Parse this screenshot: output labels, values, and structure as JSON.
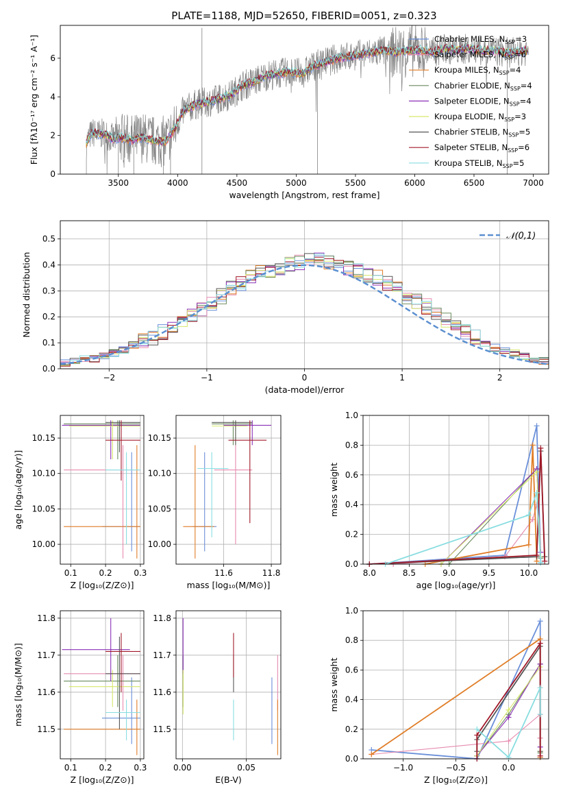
{
  "figure_title": "PLATE=1188, MJD=52650, FIBERID=0051, z=0.323",
  "colors": {
    "Chabrier MILES": "#6a8fd9",
    "Salpeter MILES": "#e68aaf",
    "Kroupa MILES": "#e07d27",
    "Chabrier ELODIE": "#6a8a5e",
    "Salpeter ELODIE": "#8a2fb6",
    "Kroupa ELODIE": "#d6e86a",
    "Chabrier STELIB": "#555555",
    "Salpeter STELIB": "#a01828",
    "Kroupa STELIB": "#88dde0",
    "data": "#808080",
    "gaussian": "#5b8fd0"
  },
  "chart_data": [
    {
      "id": "spectrum",
      "type": "line",
      "xlabel": "wavelength [Angstrom, rest frame]",
      "ylabel": "Flux [fλ10⁻¹⁷ erg cm⁻² s⁻¹ A⁻¹]",
      "xlim": [
        3010,
        7130
      ],
      "ylim": [
        0,
        7.7
      ],
      "xticks": [
        3500,
        4000,
        4500,
        5000,
        5500,
        6000,
        6500,
        7000
      ],
      "yticks": [
        0,
        2,
        4,
        6
      ],
      "continuum_knots": {
        "x": [
          3230,
          3260,
          3290,
          3320,
          3380,
          3460,
          3520,
          3600,
          3700,
          3800,
          3900,
          3980,
          4050,
          4150,
          4300,
          4450,
          4550,
          4650,
          4750,
          4850,
          4950,
          5050,
          5150,
          5250,
          5350,
          5450,
          5550,
          5650,
          5750,
          5850,
          5950,
          6050,
          6150,
          6250,
          6350,
          6450,
          6550,
          6650,
          6750,
          6850,
          6950
        ],
        "y": [
          1.6,
          2.0,
          2.15,
          2.05,
          2.1,
          1.8,
          1.9,
          1.75,
          1.9,
          1.7,
          1.7,
          2.4,
          3.3,
          3.6,
          3.8,
          4.1,
          4.6,
          4.8,
          5.1,
          5.2,
          5.3,
          5.2,
          5.6,
          5.8,
          6.0,
          6.1,
          6.2,
          6.3,
          6.4,
          6.3,
          6.4,
          6.4,
          6.3,
          6.5,
          6.4,
          6.5,
          6.4,
          6.4,
          6.3,
          6.3,
          6.4
        ]
      },
      "legend": [
        "Chabrier MILES, N_SSP=3",
        "Salpeter MILES, N_SSP=6",
        "Kroupa MILES, N_SSP=4",
        "Chabrier ELODIE, N_SSP=4",
        "Salpeter ELODIE, N_SSP=4",
        "Kroupa ELODIE, N_SSP=3",
        "Chabrier STELIB, N_SSP=5",
        "Salpeter STELIB, N_SSP=6",
        "Kroupa STELIB, N_SSP=5"
      ],
      "legend_keys": [
        "Chabrier MILES",
        "Salpeter MILES",
        "Kroupa MILES",
        "Chabrier ELODIE",
        "Salpeter ELODIE",
        "Kroupa ELODIE",
        "Chabrier STELIB",
        "Salpeter STELIB",
        "Kroupa STELIB"
      ]
    },
    {
      "id": "residuals",
      "type": "histogram",
      "xlabel": "(data-model)/error",
      "ylabel": "Normed distribution",
      "xlim": [
        -2.5,
        2.5
      ],
      "ylim": [
        0,
        0.57
      ],
      "xticks": [
        -2,
        -1,
        0,
        1,
        2
      ],
      "yticks": [
        0.0,
        0.1,
        0.2,
        0.3,
        0.4,
        0.5
      ],
      "bin_width": 0.1,
      "bins_start": -2.5,
      "values": [
        0.02,
        0.03,
        0.04,
        0.04,
        0.05,
        0.06,
        0.07,
        0.09,
        0.11,
        0.12,
        0.14,
        0.16,
        0.18,
        0.21,
        0.23,
        0.25,
        0.28,
        0.31,
        0.33,
        0.35,
        0.37,
        0.38,
        0.39,
        0.4,
        0.41,
        0.42,
        0.42,
        0.41,
        0.4,
        0.39,
        0.38,
        0.36,
        0.35,
        0.33,
        0.31,
        0.28,
        0.26,
        0.24,
        0.21,
        0.19,
        0.16,
        0.14,
        0.12,
        0.1,
        0.08,
        0.07,
        0.06,
        0.05,
        0.04,
        0.03
      ],
      "legend": "𝒩(0,1)"
    },
    {
      "id": "age-vs-Z",
      "type": "errorbar",
      "xlabel": "Z [log₁₀(Z/Z⊙)]",
      "ylabel": "age  [log₁₀(age/yr)]",
      "xlim": [
        0.07,
        0.31
      ],
      "ylim": [
        9.972,
        10.182
      ],
      "xticks": [
        0.1,
        0.2,
        0.3
      ],
      "yticks": [
        10.0,
        10.05,
        10.1,
        10.15
      ],
      "points": [
        {
          "key": "Chabrier MILES",
          "x": 0.275,
          "y": 10.025,
          "xerr": [
            0.19,
            0.3
          ],
          "yerr": [
            9.99,
            10.13
          ]
        },
        {
          "key": "Salpeter MILES",
          "x": 0.25,
          "y": 10.105,
          "xerr": [
            0.08,
            0.3
          ],
          "yerr": [
            9.98,
            10.14
          ]
        },
        {
          "key": "Kroupa MILES",
          "x": 0.29,
          "y": 10.025,
          "xerr": [
            0.08,
            0.3
          ],
          "yerr": [
            9.98,
            10.14
          ]
        },
        {
          "key": "Chabrier ELODIE",
          "x": 0.235,
          "y": 10.17,
          "xerr": [
            0.08,
            0.3
          ],
          "yerr": [
            10.12,
            10.175
          ]
        },
        {
          "key": "Salpeter ELODIE",
          "x": 0.215,
          "y": 10.168,
          "xerr": [
            0.075,
            0.3
          ],
          "yerr": [
            10.12,
            10.175
          ]
        },
        {
          "key": "Kroupa ELODIE",
          "x": 0.22,
          "y": 10.167,
          "xerr": [
            0.095,
            0.3
          ],
          "yerr": [
            10.12,
            10.175
          ]
        },
        {
          "key": "Chabrier STELIB",
          "x": 0.24,
          "y": 10.172,
          "xerr": [
            0.2,
            0.3
          ],
          "yerr": [
            10.13,
            10.175
          ]
        },
        {
          "key": "Salpeter STELIB",
          "x": 0.245,
          "y": 10.147,
          "xerr": [
            0.2,
            0.3
          ],
          "yerr": [
            10.09,
            10.175
          ]
        },
        {
          "key": "Kroupa STELIB",
          "x": 0.26,
          "y": 10.105,
          "xerr": [
            0.2,
            0.3
          ],
          "yerr": [
            10.0,
            10.13
          ]
        }
      ]
    },
    {
      "id": "age-vs-mass",
      "type": "errorbar",
      "xlabel": "mass [log₁₀(M/M⊙)]",
      "ylabel": "",
      "xlim": [
        11.4,
        11.84
      ],
      "ylim": [
        9.972,
        10.182
      ],
      "xticks": [
        11.6,
        11.8
      ],
      "yticks": [
        10.0,
        10.05,
        10.1,
        10.15
      ],
      "points": [
        {
          "key": "Chabrier MILES",
          "x": 11.52,
          "y": 10.025,
          "xerr": [
            11.47,
            11.57
          ],
          "yerr": [
            9.99,
            10.13
          ]
        },
        {
          "key": "Salpeter MILES",
          "x": 11.65,
          "y": 10.105,
          "xerr": [
            11.56,
            11.72
          ],
          "yerr": [
            10.0,
            10.14
          ]
        },
        {
          "key": "Kroupa MILES",
          "x": 11.48,
          "y": 10.025,
          "xerr": [
            11.43,
            11.56
          ],
          "yerr": [
            9.98,
            10.14
          ]
        },
        {
          "key": "Chabrier ELODIE",
          "x": 11.64,
          "y": 10.17,
          "xerr": [
            11.55,
            11.72
          ],
          "yerr": [
            10.14,
            10.175
          ]
        },
        {
          "key": "Salpeter ELODIE",
          "x": 11.72,
          "y": 10.168,
          "xerr": [
            11.6,
            11.8
          ],
          "yerr": [
            10.14,
            10.175
          ]
        },
        {
          "key": "Kroupa ELODIE",
          "x": 11.65,
          "y": 10.167,
          "xerr": [
            11.55,
            11.7
          ],
          "yerr": [
            10.14,
            10.175
          ]
        },
        {
          "key": "Chabrier STELIB",
          "x": 11.65,
          "y": 10.172,
          "xerr": [
            11.55,
            11.72
          ],
          "yerr": [
            10.14,
            10.175
          ]
        },
        {
          "key": "Salpeter STELIB",
          "x": 11.71,
          "y": 10.147,
          "xerr": [
            11.62,
            11.78
          ],
          "yerr": [
            10.03,
            10.175
          ]
        },
        {
          "key": "Kroupa STELIB",
          "x": 11.55,
          "y": 10.107,
          "xerr": [
            11.49,
            11.62
          ],
          "yerr": [
            10.01,
            10.13
          ]
        }
      ]
    },
    {
      "id": "weight-vs-age",
      "type": "line",
      "xlabel": "age  [log₁₀(age/yr)]",
      "ylabel": "mass weight",
      "xlim": [
        7.92,
        10.25
      ],
      "ylim": [
        0,
        1.0
      ],
      "xticks": [
        8.0,
        8.5,
        9.0,
        9.5,
        10.0
      ],
      "yticks": [
        0.0,
        0.2,
        0.4,
        0.6,
        0.8,
        1.0
      ],
      "series": [
        {
          "key": "Chabrier MILES",
          "x": [
            8.0,
            9.7,
            10.1,
            10.15
          ],
          "y": [
            0.0,
            0.06,
            0.93,
            0.01
          ]
        },
        {
          "key": "Salpeter MILES",
          "x": [
            8.3,
            9.7,
            10.05,
            10.1,
            10.15
          ],
          "y": [
            0.0,
            0.05,
            0.3,
            0.4,
            0.05
          ]
        },
        {
          "key": "Kroupa MILES",
          "x": [
            8.7,
            10.0,
            10.05,
            10.1
          ],
          "y": [
            0.0,
            0.13,
            0.8,
            0.02
          ]
        },
        {
          "key": "Chabrier ELODIE",
          "x": [
            9.0,
            10.1,
            10.15
          ],
          "y": [
            0.0,
            0.64,
            0.04
          ]
        },
        {
          "key": "Salpeter ELODIE",
          "x": [
            8.9,
            10.1,
            10.15
          ],
          "y": [
            0.0,
            0.64,
            0.08
          ]
        },
        {
          "key": "Kroupa ELODIE",
          "x": [
            8.9,
            10.1,
            10.15
          ],
          "y": [
            0.0,
            0.62,
            0.05
          ]
        },
        {
          "key": "Chabrier STELIB",
          "x": [
            8.0,
            10.1,
            10.15,
            10.2
          ],
          "y": [
            0.0,
            0.05,
            0.76,
            0.05
          ]
        },
        {
          "key": "Salpeter STELIB",
          "x": [
            8.0,
            10.1,
            10.15,
            10.2
          ],
          "y": [
            0.0,
            0.06,
            0.78,
            0.02
          ]
        },
        {
          "key": "Kroupa STELIB",
          "x": [
            8.2,
            10.0,
            10.1,
            10.15
          ],
          "y": [
            0.0,
            0.33,
            0.48,
            0.01
          ]
        }
      ]
    },
    {
      "id": "mass-vs-Z",
      "type": "errorbar",
      "xlabel": "Z [log₁₀(Z/Z⊙)]",
      "ylabel": "mass [log₁₀(M/M⊙)]",
      "xlim": [
        0.07,
        0.31
      ],
      "ylim": [
        11.42,
        11.82
      ],
      "xticks": [
        0.1,
        0.2,
        0.3
      ],
      "yticks": [
        11.5,
        11.6,
        11.7,
        11.8
      ],
      "points": [
        {
          "key": "Chabrier MILES",
          "x": 0.275,
          "y": 11.53,
          "xerr": [
            0.19,
            0.3
          ],
          "yerr": [
            11.46,
            11.64
          ]
        },
        {
          "key": "Salpeter MILES",
          "x": 0.25,
          "y": 11.65,
          "xerr": [
            0.08,
            0.3
          ],
          "yerr": [
            11.55,
            11.7
          ]
        },
        {
          "key": "Kroupa MILES",
          "x": 0.29,
          "y": 11.5,
          "xerr": [
            0.08,
            0.3
          ],
          "yerr": [
            11.43,
            11.58
          ]
        },
        {
          "key": "Chabrier ELODIE",
          "x": 0.235,
          "y": 11.63,
          "xerr": [
            0.08,
            0.3
          ],
          "yerr": [
            11.56,
            11.7
          ]
        },
        {
          "key": "Salpeter ELODIE",
          "x": 0.215,
          "y": 11.715,
          "xerr": [
            0.075,
            0.27
          ],
          "yerr": [
            11.63,
            11.8
          ]
        },
        {
          "key": "Kroupa ELODIE",
          "x": 0.22,
          "y": 11.615,
          "xerr": [
            0.095,
            0.3
          ],
          "yerr": [
            11.56,
            11.66
          ]
        },
        {
          "key": "Chabrier STELIB",
          "x": 0.24,
          "y": 11.65,
          "xerr": [
            0.2,
            0.3
          ],
          "yerr": [
            11.5,
            11.75
          ]
        },
        {
          "key": "Salpeter STELIB",
          "x": 0.245,
          "y": 11.71,
          "xerr": [
            0.2,
            0.3
          ],
          "yerr": [
            11.6,
            11.76
          ]
        },
        {
          "key": "Kroupa STELIB",
          "x": 0.26,
          "y": 11.545,
          "xerr": [
            0.2,
            0.3
          ],
          "yerr": [
            11.47,
            11.58
          ]
        }
      ]
    },
    {
      "id": "mass-vs-ebv",
      "type": "errorbar",
      "xlabel": "E(B-V)",
      "ylabel": "",
      "xlim": [
        -0.005,
        0.077
      ],
      "ylim": [
        11.42,
        11.82
      ],
      "xticks": [
        0.0,
        0.05
      ],
      "yticks": [
        11.5,
        11.6,
        11.7,
        11.8
      ],
      "points": [
        {
          "key": "Chabrier MILES",
          "x": 0.07,
          "y": 11.53,
          "yerr": [
            11.46,
            11.64
          ]
        },
        {
          "key": "Salpeter MILES",
          "x": 0.0745,
          "y": 11.65,
          "yerr": [
            11.55,
            11.7
          ]
        },
        {
          "key": "Kroupa MILES",
          "x": 0.0745,
          "y": 11.5,
          "yerr": [
            11.43,
            11.58
          ]
        },
        {
          "key": "Chabrier ELODIE",
          "x": 0.0005,
          "y": 11.63,
          "yerr": [
            11.56,
            11.7
          ]
        },
        {
          "key": "Salpeter ELODIE",
          "x": 0.0005,
          "y": 11.715,
          "yerr": [
            11.65,
            11.8
          ]
        },
        {
          "key": "Kroupa ELODIE",
          "x": 0.0005,
          "y": 11.615,
          "yerr": [
            11.54,
            11.66
          ]
        },
        {
          "key": "Chabrier STELIB",
          "x": 0.04,
          "y": 11.65,
          "yerr": [
            11.6,
            11.7
          ]
        },
        {
          "key": "Salpeter STELIB",
          "x": 0.04,
          "y": 11.71,
          "yerr": [
            11.64,
            11.76
          ]
        },
        {
          "key": "Kroupa STELIB",
          "x": 0.04,
          "y": 11.545,
          "yerr": [
            11.47,
            11.58
          ]
        }
      ]
    },
    {
      "id": "weight-vs-Z",
      "type": "line",
      "xlabel": "Z [log₁₀(Z/Z⊙)]",
      "ylabel": "mass weight",
      "xlim": [
        -1.38,
        0.38
      ],
      "ylim": [
        0,
        1.0
      ],
      "xticks": [
        -1.0,
        -0.5,
        0.0
      ],
      "yticks": [
        0.0,
        0.2,
        0.4,
        0.6,
        0.8,
        1.0
      ],
      "series": [
        {
          "key": "Chabrier MILES",
          "x": [
            -1.3,
            -0.3,
            0.3,
            0.3
          ],
          "y": [
            0.06,
            0.0,
            0.93,
            0.01
          ]
        },
        {
          "key": "Salpeter MILES",
          "x": [
            -1.3,
            0.0,
            0.3,
            0.3
          ],
          "y": [
            0.03,
            0.12,
            0.3,
            0.14
          ]
        },
        {
          "key": "Kroupa MILES",
          "x": [
            -1.3,
            0.3,
            0.3
          ],
          "y": [
            0.03,
            0.81,
            0.01
          ]
        },
        {
          "key": "Chabrier ELODIE",
          "x": [
            -0.3,
            0.0,
            0.3,
            0.3
          ],
          "y": [
            0.02,
            0.3,
            0.64,
            0.04
          ]
        },
        {
          "key": "Salpeter ELODIE",
          "x": [
            -0.3,
            0.0,
            0.3,
            0.3
          ],
          "y": [
            0.02,
            0.28,
            0.64,
            0.08
          ]
        },
        {
          "key": "Kroupa ELODIE",
          "x": [
            -0.3,
            0.0,
            0.3,
            0.3
          ],
          "y": [
            0.02,
            0.33,
            0.62,
            0.05
          ]
        },
        {
          "key": "Chabrier STELIB",
          "x": [
            -0.3,
            -0.3,
            0.3,
            0.3
          ],
          "y": [
            0.05,
            0.13,
            0.76,
            0.05
          ]
        },
        {
          "key": "Salpeter STELIB",
          "x": [
            -0.3,
            -0.3,
            0.3,
            0.3
          ],
          "y": [
            0.0,
            0.16,
            0.78,
            0.02
          ]
        },
        {
          "key": "Kroupa STELIB",
          "x": [
            -0.3,
            0.0,
            0.3,
            0.3
          ],
          "y": [
            0.2,
            0.01,
            0.48,
            0.3
          ]
        }
      ]
    }
  ]
}
